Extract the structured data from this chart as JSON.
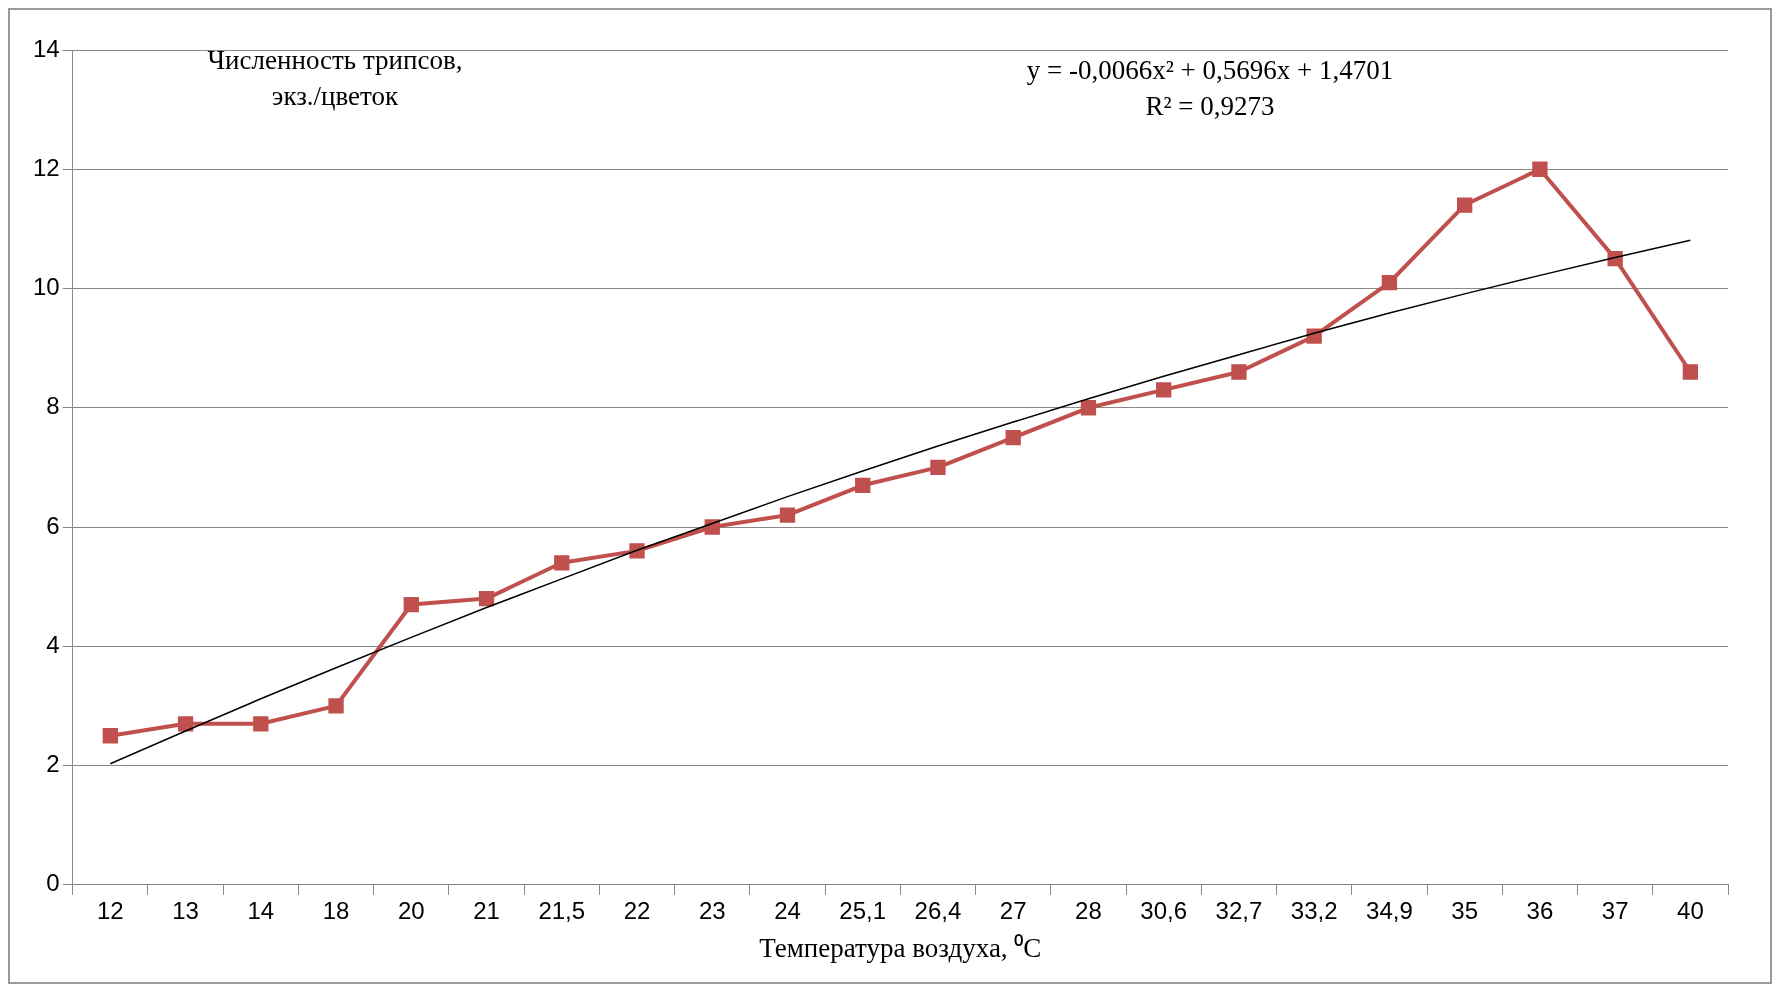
{
  "chart_data": {
    "type": "line",
    "ylabel": "Численность трипсов, экз./цветок",
    "xlabel": "Температура воздуха, ⁰C",
    "categories": [
      "12",
      "13",
      "14",
      "18",
      "20",
      "21",
      "21,5",
      "22",
      "23",
      "24",
      "25,1",
      "26,4",
      "27",
      "28",
      "30,6",
      "32,7",
      "33,2",
      "34,9",
      "35",
      "36",
      "37",
      "40"
    ],
    "series": [
      {
        "color": "#c0504d",
        "marker": "square",
        "values": [
          2.5,
          2.7,
          2.7,
          3.0,
          4.7,
          4.8,
          5.4,
          5.6,
          6.0,
          6.2,
          6.7,
          7.0,
          7.5,
          8.0,
          8.3,
          8.6,
          9.2,
          10.1,
          11.4,
          12.0,
          10.5,
          8.6
        ]
      },
      {
        "color": "#000000",
        "marker": "none",
        "values": [
          2.03,
          2.58,
          3.12,
          3.64,
          4.15,
          4.65,
          5.13,
          5.61,
          6.06,
          6.51,
          6.94,
          7.36,
          7.76,
          8.15,
          8.53,
          8.89,
          9.25,
          9.59,
          9.91,
          10.22,
          10.52,
          10.81
        ]
      }
    ],
    "annotations": [
      "y = -0,0066x² + 0,5696x + 1,4701",
      "R² = 0,9273"
    ],
    "ylim": [
      0,
      14
    ],
    "yticks": [
      0,
      2,
      4,
      6,
      8,
      10,
      12,
      14
    ],
    "grid": "y",
    "legend": false
  }
}
